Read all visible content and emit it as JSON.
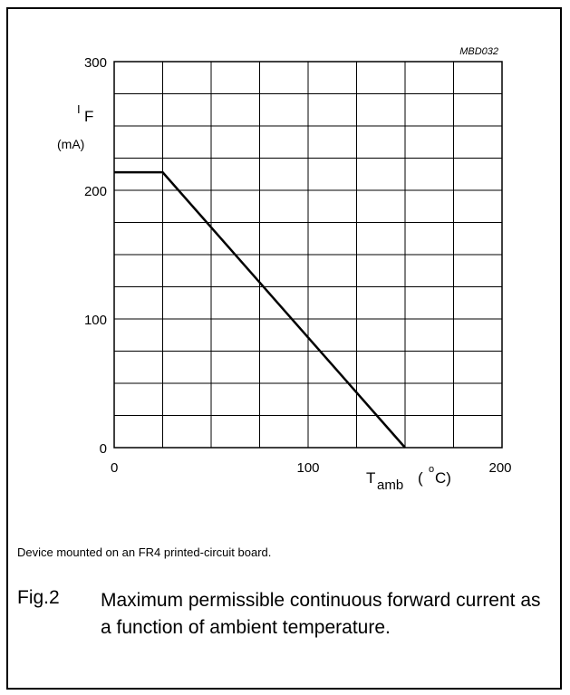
{
  "chart_data": {
    "type": "line",
    "code": "MBD032",
    "ylabel_main": "I",
    "ylabel_sub": "F",
    "ylabel_unit": "(mA)",
    "xlabel_main": "T",
    "xlabel_sub": "amb",
    "xlabel_unit_open": "(",
    "xlabel_unit_sup": "o",
    "xlabel_unit_rest": "C)",
    "xlim": [
      0,
      200
    ],
    "ylim": [
      0,
      300
    ],
    "x_ticks": [
      0,
      100,
      200
    ],
    "y_ticks": [
      0,
      100,
      200,
      300
    ],
    "x_grid_step": 25,
    "y_grid_step": 25,
    "grid": true,
    "series": [
      {
        "x": [
          0,
          25,
          150
        ],
        "y": [
          214,
          214,
          0
        ]
      }
    ]
  },
  "note": "Device mounted on an FR4 printed-circuit board.",
  "figure": {
    "label": "Fig.2",
    "caption": "Maximum permissible continuous forward current as a function of ambient temperature."
  }
}
